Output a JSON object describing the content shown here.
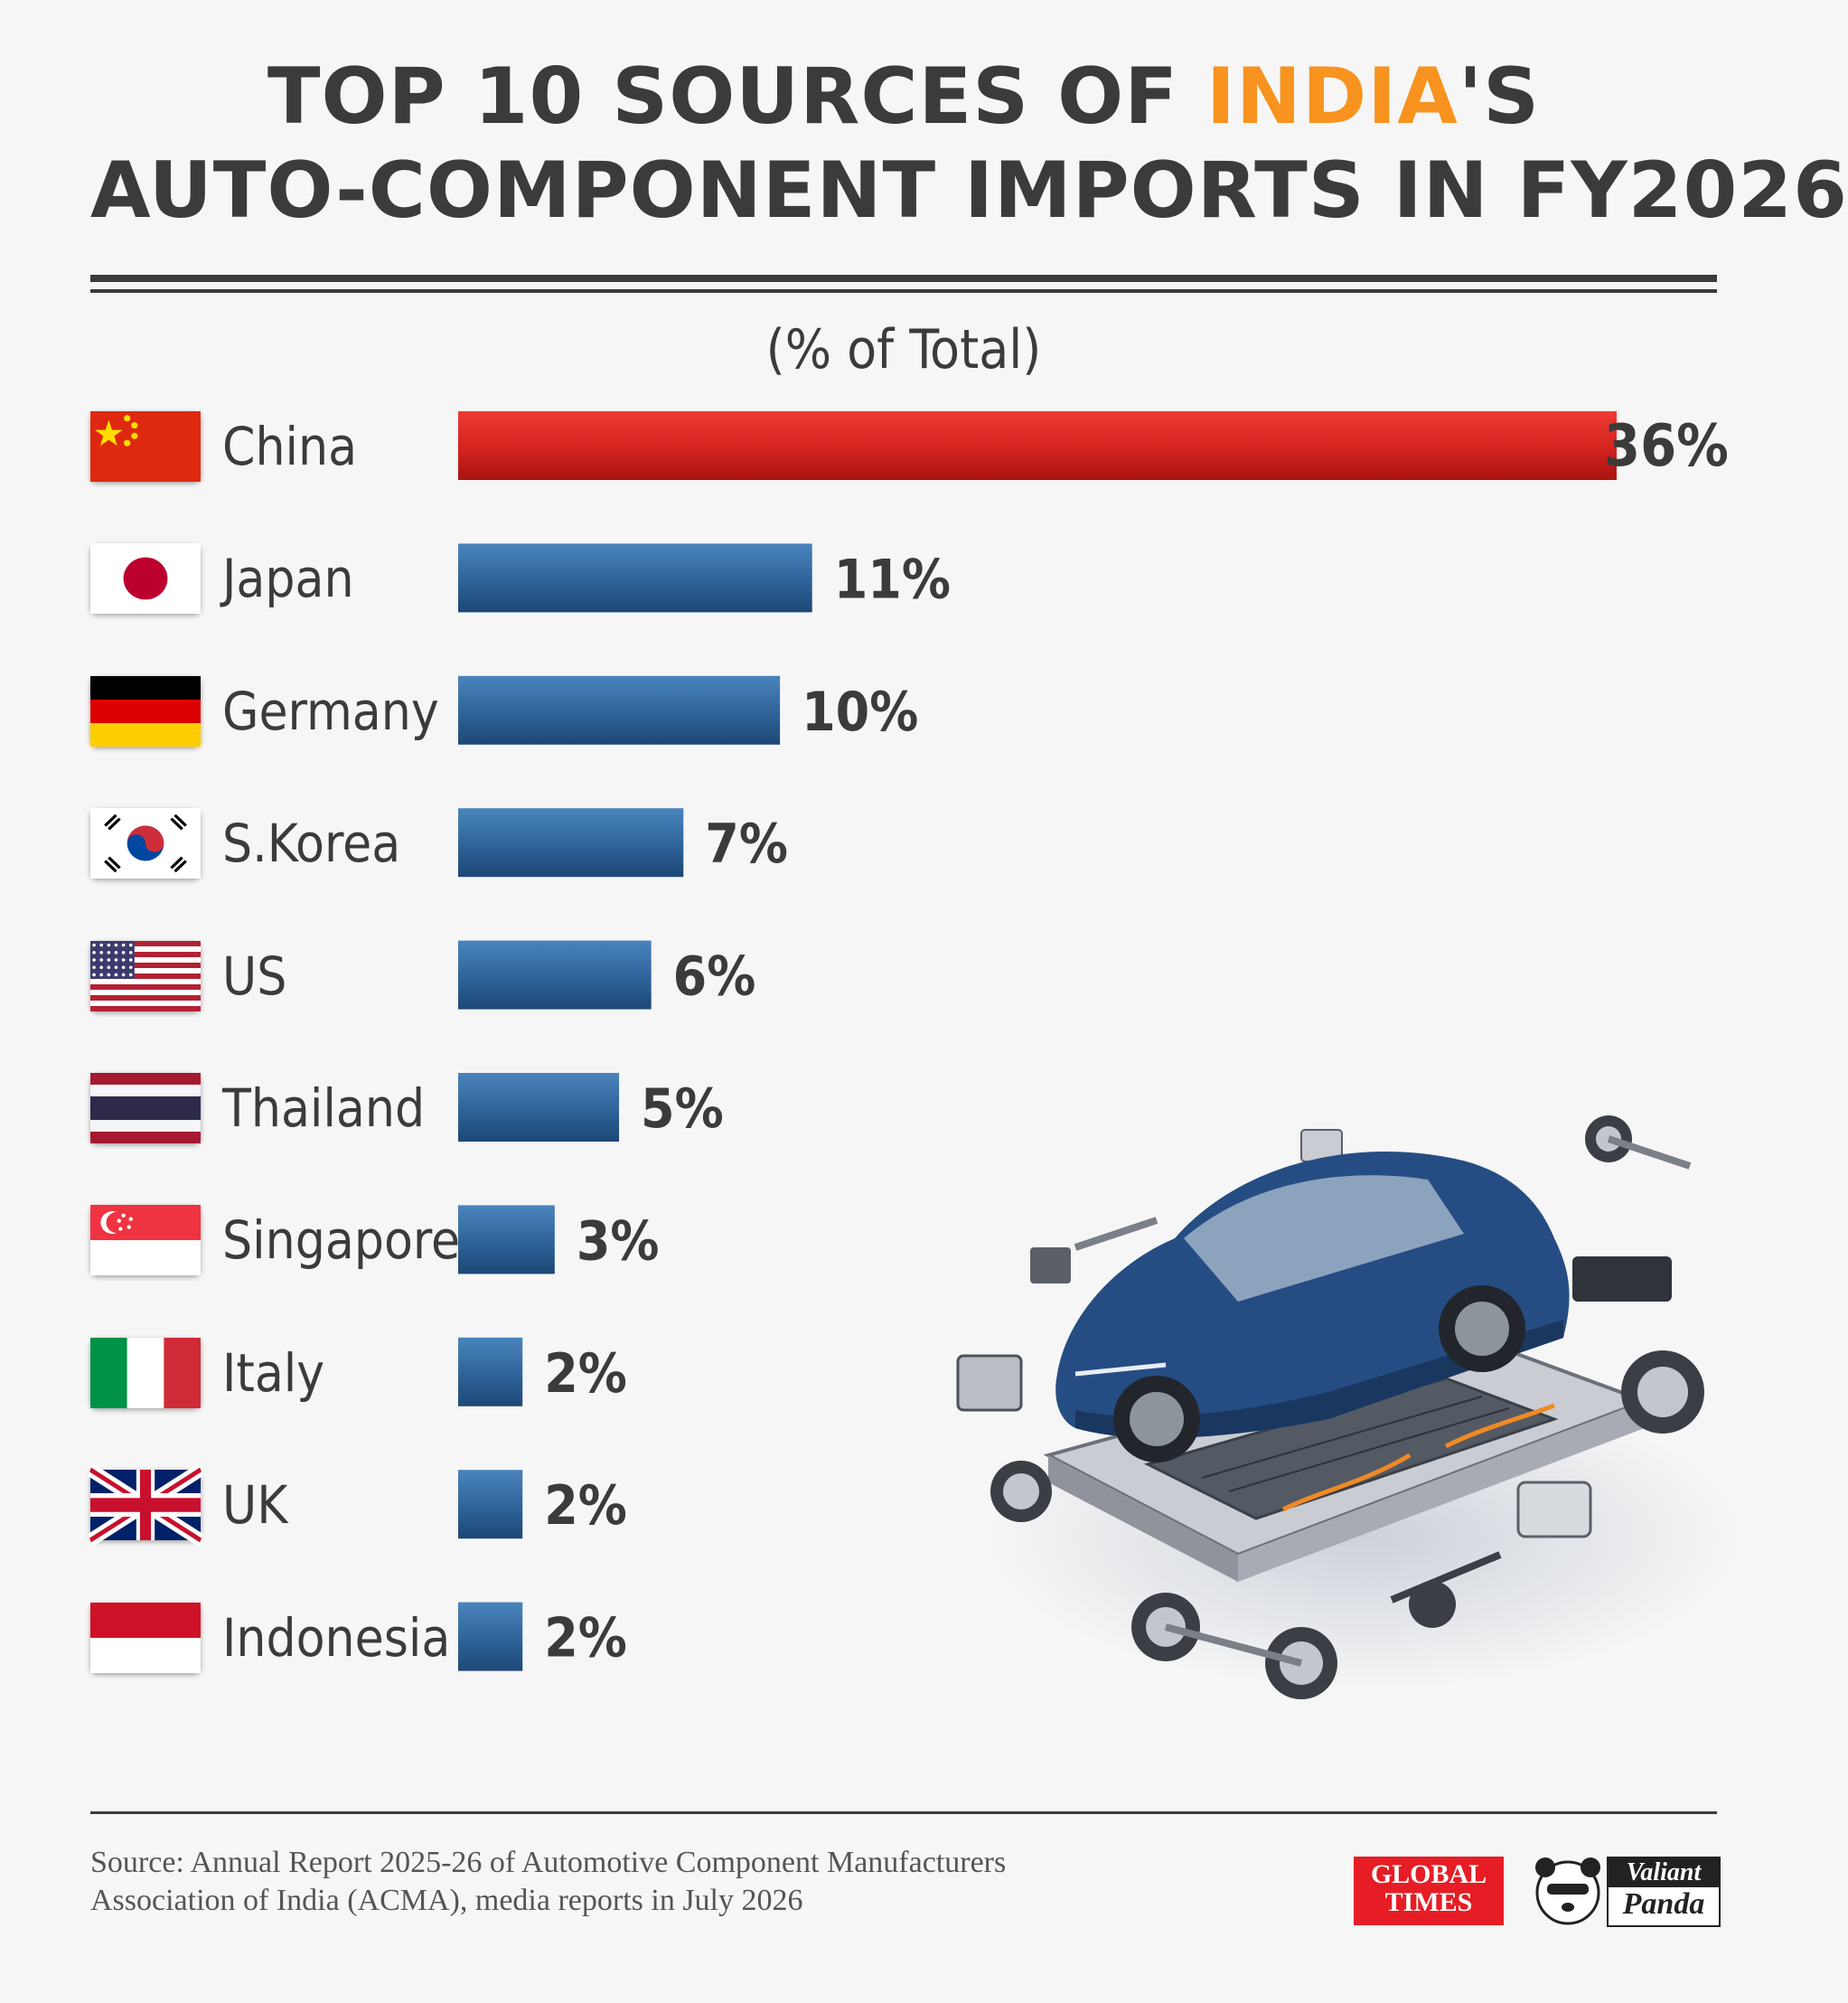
{
  "header": {
    "title_line1_pre": "TOP 10 SOURCES OF ",
    "title_line1_highlight": "INDIA",
    "title_line1_post": "'S",
    "title_line2": "AUTO-COMPONENT IMPORTS IN FY2026",
    "subtitle": "(% of Total)"
  },
  "colors": {
    "highlight": "#f7931e",
    "china_bar": "#d5231f",
    "other_bar": "#2e6399",
    "text": "#3b3b3b"
  },
  "chart_data": {
    "type": "bar",
    "orientation": "horizontal",
    "title": "TOP 10 SOURCES OF INDIA'S AUTO-COMPONENT IMPORTS IN FY2026",
    "subtitle": "(% of Total)",
    "categories": [
      "China",
      "Japan",
      "Germany",
      "S.Korea",
      "US",
      "Thailand",
      "Singapore",
      "Italy",
      "UK",
      "Indonesia"
    ],
    "values": [
      36,
      11,
      10,
      7,
      6,
      5,
      3,
      2,
      2,
      2
    ],
    "value_labels": [
      "36%",
      "11%",
      "10%",
      "7%",
      "6%",
      "5%",
      "3%",
      "2%",
      "2%",
      "2%"
    ],
    "flags": [
      "china-flag",
      "japan-flag",
      "germany-flag",
      "south-korea-flag",
      "us-flag",
      "thailand-flag",
      "singapore-flag",
      "italy-flag",
      "uk-flag",
      "indonesia-flag"
    ],
    "xlim": [
      0,
      36
    ],
    "grid": false,
    "legend": "none"
  },
  "footer": {
    "source_line1": "Source: Annual Report 2025-26 of Automotive Component Manufacturers",
    "source_line2": "Association of India (ACMA), media reports in July 2026",
    "gt_logo_line1": "GLOBAL",
    "gt_logo_line2": "TIMES",
    "vp_logo_line1": "Valiant",
    "vp_logo_line2": "Panda"
  }
}
